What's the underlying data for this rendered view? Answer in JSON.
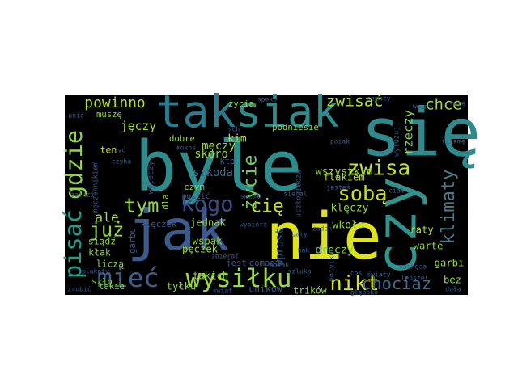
{
  "chart_data": {
    "type": "wordcloud",
    "background": "#000000",
    "colormap": "viridis",
    "words": [
      {
        "text": "byle",
        "weight": 100,
        "color": "#2e8c8c"
      },
      {
        "text": "się",
        "weight": 95,
        "color": "#2f8a8d"
      },
      {
        "text": "nie",
        "weight": 92,
        "color": "#dfe31c"
      },
      {
        "text": "jak",
        "weight": 80,
        "color": "#3b5b8c"
      },
      {
        "text": "czy",
        "weight": 78,
        "color": "#31938c"
      },
      {
        "text": "tak",
        "weight": 62,
        "color": "#2a7b8e"
      },
      {
        "text": "siak",
        "weight": 60,
        "color": "#2e8c8c"
      },
      {
        "text": "mieć",
        "weight": 34,
        "color": "#3d5f8b"
      },
      {
        "text": "wysiłku",
        "weight": 33,
        "color": "#9bd93c"
      },
      {
        "text": "pisać",
        "weight": 30,
        "color": "#1f9e89"
      },
      {
        "text": "gdzie",
        "weight": 30,
        "color": "#8fd744"
      },
      {
        "text": "kogo",
        "weight": 28,
        "color": "#3e4a89"
      },
      {
        "text": "zwisa",
        "weight": 27,
        "color": "#c3e03a"
      },
      {
        "text": "sobą",
        "weight": 26,
        "color": "#c8e020"
      },
      {
        "text": "nikt",
        "weight": 26,
        "color": "#d6e22b"
      },
      {
        "text": "tym",
        "weight": 24,
        "color": "#8fd744"
      },
      {
        "text": "już",
        "weight": 24,
        "color": "#8fd744"
      },
      {
        "text": "cię",
        "weight": 23,
        "color": "#c8e020"
      },
      {
        "text": "życie",
        "weight": 23,
        "color": "#6ccd5a"
      },
      {
        "text": "klimaty",
        "weight": 22,
        "color": "#4b7c8b"
      },
      {
        "text": "chociaż",
        "weight": 20,
        "color": "#3f6a8b"
      },
      {
        "text": "zwisać",
        "weight": 19,
        "color": "#b5de2b"
      },
      {
        "text": "chce",
        "weight": 18,
        "color": "#a0da39"
      },
      {
        "text": "powinno",
        "weight": 17,
        "color": "#b5de2b"
      },
      {
        "text": "ale",
        "weight": 15,
        "color": "#a0da39"
      },
      {
        "text": "rzeczy",
        "weight": 14,
        "color": "#7ad151"
      },
      {
        "text": "jęczy",
        "weight": 13,
        "color": "#a8db34"
      },
      {
        "text": "skoro",
        "weight": 12,
        "color": "#9bd93c"
      },
      {
        "text": "szkoda",
        "weight": 12,
        "color": "#3b6e8b"
      },
      {
        "text": "męczy",
        "weight": 12,
        "color": "#9bd93c"
      },
      {
        "text": "kim",
        "weight": 11,
        "color": "#c8e020"
      },
      {
        "text": "wszystkim",
        "weight": 11,
        "color": "#8fd744"
      },
      {
        "text": "klęczy",
        "weight": 11,
        "color": "#8fd744"
      },
      {
        "text": "wkoło",
        "weight": 11,
        "color": "#8fd744"
      },
      {
        "text": "dręczy",
        "weight": 11,
        "color": "#7ad151"
      },
      {
        "text": "warte",
        "weight": 10,
        "color": "#8fd744"
      },
      {
        "text": "raty",
        "weight": 10,
        "color": "#b5de2b"
      },
      {
        "text": "flakiem",
        "weight": 10,
        "color": "#b5de2b"
      },
      {
        "text": "wprost",
        "weight": 11,
        "color": "#3b5b8c"
      },
      {
        "text": "wspak",
        "weight": 10,
        "color": "#8fd744"
      },
      {
        "text": "jednak",
        "weight": 10,
        "color": "#a0da39"
      },
      {
        "text": "pęczek",
        "weight": 10,
        "color": "#a0da39"
      },
      {
        "text": "garbi",
        "weight": 10,
        "color": "#8fd744"
      },
      {
        "text": "bez",
        "weight": 10,
        "color": "#8fd744"
      },
      {
        "text": "tyłku",
        "weight": 10,
        "color": "#8fd744"
      },
      {
        "text": "takich",
        "weight": 10,
        "color": "#8fd744"
      },
      {
        "text": "trików",
        "weight": 9,
        "color": "#8fd744"
      },
      {
        "text": "unikow",
        "weight": 9,
        "color": "#3b5b8c"
      },
      {
        "text": "ten",
        "weight": 9,
        "color": "#c8e020"
      },
      {
        "text": "siądź",
        "weight": 9,
        "color": "#8fd744"
      },
      {
        "text": "kłak",
        "weight": 9,
        "color": "#8fd744"
      },
      {
        "text": "liczą",
        "weight": 9,
        "color": "#8fd744"
      },
      {
        "text": "takie",
        "weight": 8,
        "color": "#8fd744"
      },
      {
        "text": "szło",
        "weight": 8,
        "color": "#8fd744"
      },
      {
        "text": "dobre",
        "weight": 8,
        "color": "#8fd744"
      },
      {
        "text": "czym",
        "weight": 8,
        "color": "#8fd744"
      },
      {
        "text": "dla",
        "weight": 8,
        "color": "#8fd744"
      },
      {
        "text": "życia",
        "weight": 8,
        "color": "#8fd744"
      },
      {
        "text": "podniesie",
        "weight": 8,
        "color": "#8fd744"
      },
      {
        "text": "muszę",
        "weight": 8,
        "color": "#8fd744"
      },
      {
        "text": "jest",
        "weight": 8,
        "color": "#3b5b8c"
      },
      {
        "text": "domaga",
        "weight": 8,
        "color": "#3b5b8c"
      },
      {
        "text": "klęczek",
        "weight": 8,
        "color": "#3b5b8c"
      },
      {
        "text": "garbu",
        "weight": 8,
        "color": "#3b5b8c"
      },
      {
        "text": "kto",
        "weight": 8,
        "color": "#3b5b8c"
      },
      {
        "text": "puścić",
        "weight": 7,
        "color": "#3b5b8c"
      },
      {
        "text": "wyleczy",
        "weight": 7,
        "color": "#3e4a89"
      },
      {
        "text": "męczennikiem",
        "weight": 6,
        "color": "#3b5b8c"
      },
      {
        "text": "uczłowiecza",
        "weight": 6,
        "color": "#3b5b8c"
      },
      {
        "text": "motylku",
        "weight": 6,
        "color": "#3b5b8c"
      },
      {
        "text": "wyluzuj",
        "weight": 6,
        "color": "#3b5b8c"
      },
      {
        "text": "poiak",
        "weight": 5,
        "color": "#3b5b8c"
      },
      {
        "text": "szmaty",
        "weight": 5,
        "color": "#3b5b8c"
      },
      {
        "text": "głęboko",
        "weight": 5,
        "color": "#3b5b8c"
      },
      {
        "text": "zachęca",
        "weight": 5,
        "color": "#3b5b8c"
      },
      {
        "text": "ściemę",
        "weight": 5,
        "color": "#3b5b8c"
      },
      {
        "text": "woina",
        "weight": 5,
        "color": "#3b5b8c"
      },
      {
        "text": "smiał",
        "weight": 5,
        "color": "#3b5b8c"
      },
      {
        "text": "zbieraj",
        "weight": 5,
        "color": "#3b5b8c"
      },
      {
        "text": "kwiat",
        "weight": 5,
        "color": "#3b5b8c"
      },
      {
        "text": "szluka",
        "weight": 5,
        "color": "#3b5b8c"
      },
      {
        "text": "światy",
        "weight": 5,
        "color": "#3b5b8c"
      },
      {
        "text": "dała",
        "weight": 5,
        "color": "#3b5b8c"
      },
      {
        "text": "zrobić",
        "weight": 5,
        "color": "#3b5b8c"
      },
      {
        "text": "plakaty",
        "weight": 5,
        "color": "#3b5b8c"
      },
      {
        "text": "lepsze",
        "weight": 5,
        "color": "#3b5b8c"
      },
      {
        "text": "czyha",
        "weight": 5,
        "color": "#3b5b8c"
      },
      {
        "text": "żyć",
        "weight": 5,
        "color": "#3b5b8c"
      },
      {
        "text": "unić",
        "weight": 5,
        "color": "#3b5b8c"
      },
      {
        "text": "sch",
        "weight": 5,
        "color": "#3b5b8c"
      },
      {
        "text": "ciał",
        "weight": 5,
        "color": "#3b5b8c"
      },
      {
        "text": "zaiazi",
        "weight": 5,
        "color": "#3b5b8c"
      },
      {
        "text": "kokos",
        "weight": 5,
        "color": "#3b5b8c"
      },
      {
        "text": "spoko",
        "weight": 5,
        "color": "#3b5b8c"
      },
      {
        "text": "sieral",
        "weight": 5,
        "color": "#3b5b8c"
      },
      {
        "text": "wybierz",
        "weight": 5,
        "color": "#3b5b8c"
      },
      {
        "text": "baty",
        "weight": 5,
        "color": "#3b5b8c"
      },
      {
        "text": "hak",
        "weight": 5,
        "color": "#3b5b8c"
      },
      {
        "text": "cos",
        "weight": 5,
        "color": "#3b5b8c"
      },
      {
        "text": "żaden",
        "weight": 5,
        "color": "#3b5b8c"
      },
      {
        "text": "jesteś",
        "weight": 5,
        "color": "#3b5b8c"
      },
      {
        "text": "poiak",
        "weight": 5,
        "color": "#3b5b8c"
      },
      {
        "text": "rule",
        "weight": 5,
        "color": "#3b5b8c"
      }
    ]
  }
}
